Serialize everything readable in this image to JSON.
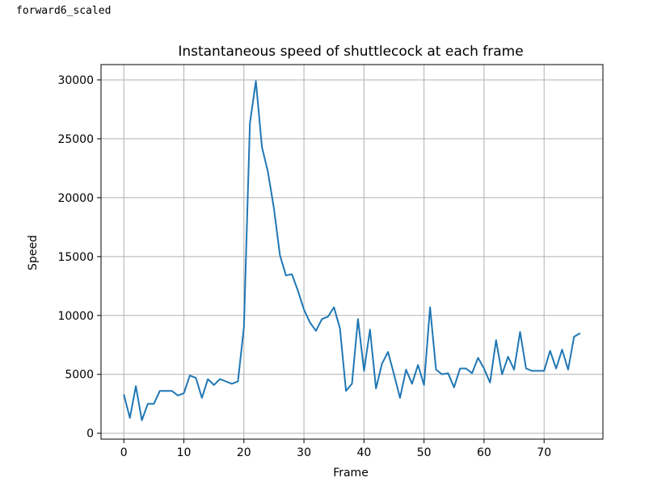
{
  "output_label": "forward6_scaled",
  "chart_data": {
    "type": "line",
    "title": "Instantaneous speed of shuttlecock at each frame",
    "xlabel": "Frame",
    "ylabel": "Speed",
    "xlim": [
      -3.8,
      79.8
    ],
    "ylim": [
      -500,
      31300
    ],
    "xticks": [
      0,
      10,
      20,
      30,
      40,
      50,
      60,
      70
    ],
    "yticks": [
      0,
      5000,
      10000,
      15000,
      20000,
      25000,
      30000
    ],
    "grid": true,
    "line_color": "#1f77b4",
    "series": [
      {
        "x": [
          0,
          1,
          2,
          3,
          4,
          5,
          6,
          7,
          8,
          9,
          10,
          11,
          12,
          13,
          14,
          15,
          16,
          17,
          18,
          19,
          20,
          21,
          22,
          23,
          24,
          25,
          26,
          27,
          28,
          29,
          30,
          31,
          32,
          33,
          34,
          35,
          36,
          37,
          38,
          39,
          40,
          41,
          42,
          43,
          44,
          45,
          46,
          47,
          48,
          49,
          50,
          51,
          52,
          53,
          54,
          55,
          56,
          57,
          58,
          59,
          60,
          61,
          62,
          63,
          64,
          65,
          66,
          67,
          68,
          69,
          70,
          71,
          72,
          73,
          74,
          75,
          76
        ],
        "values": [
          3300,
          1300,
          4000,
          1100,
          2500,
          2500,
          3600,
          3600,
          3600,
          3200,
          3400,
          4900,
          4700,
          3000,
          4600,
          4100,
          4600,
          4400,
          4200,
          4400,
          9000,
          26300,
          29900,
          24300,
          22200,
          19100,
          15100,
          13400,
          13500,
          12100,
          10500,
          9400,
          8700,
          9700,
          9900,
          10700,
          8900,
          3600,
          4200,
          9700,
          5300,
          8800,
          3800,
          5900,
          6900,
          5000,
          3000,
          5400,
          4200,
          5800,
          4100,
          10700,
          5400,
          5000,
          5100,
          3900,
          5500,
          5500,
          5100,
          6400,
          5500,
          4300,
          7900,
          5000,
          6500,
          5400,
          8600,
          5500,
          5300,
          5300,
          5300,
          7000,
          5500,
          7100,
          5400,
          8200,
          8500
        ]
      }
    ]
  }
}
